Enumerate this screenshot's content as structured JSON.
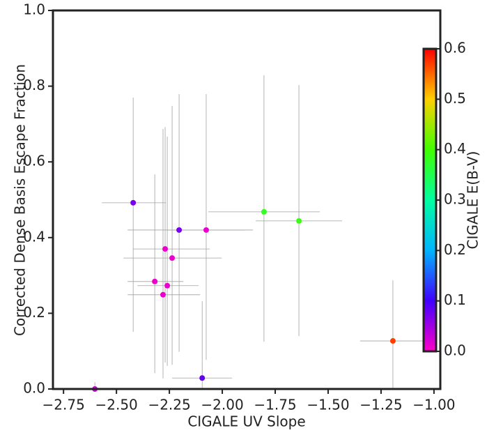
{
  "chart_data": {
    "type": "scatter",
    "x_label": "CIGALE UV Slope",
    "y_label": "Corrected Dense Basis Escape Fraction",
    "x": [
      -2.602,
      -2.421,
      -2.204,
      -2.076,
      -1.803,
      -1.638,
      -2.27,
      -2.237,
      -2.319,
      -2.26,
      -2.28,
      -2.095,
      -1.194
    ],
    "y": [
      0,
      0.492,
      0.42,
      0.42,
      0.468,
      0.444,
      0.37,
      0.346,
      0.284,
      0.273,
      0.249,
      0.029,
      0.127
    ],
    "x_low": [
      -2.602,
      -2.569,
      -2.447,
      -2.257,
      -2.066,
      -1.842,
      -2.421,
      -2.467,
      -2.447,
      -2.401,
      -2.447,
      -2.237,
      -1.349
    ],
    "x_high": [
      -2.602,
      -2.266,
      -1.855,
      -1.895,
      -1.539,
      -1.434,
      -2.059,
      -2.003,
      -2.184,
      -2.112,
      -2.105,
      -1.954,
      -1.039
    ],
    "y_low": [
      0,
      0.151,
      0.098,
      0.077,
      0.125,
      0.14,
      0.07,
      0.064,
      0.042,
      0.061,
      0.028,
      0,
      0
    ],
    "y_high": [
      0.018,
      0.77,
      0.779,
      0.779,
      0.829,
      0.803,
      0.692,
      0.748,
      0.567,
      0.667,
      0.687,
      0.232,
      0.287
    ],
    "color_values": [
      0.03,
      0.07,
      0.07,
      0.01,
      0.38,
      0.39,
      0.01,
      0.01,
      0.01,
      0.01,
      0.01,
      0.08,
      0.57
    ],
    "errorbar_color": "#a0a0a0",
    "xlim": [
      -2.8,
      -0.97
    ],
    "xticks": [
      {
        "value": -2.75,
        "label": "−2.75"
      },
      {
        "value": -2.5,
        "label": "−2.50"
      },
      {
        "value": -2.25,
        "label": "−2.25"
      },
      {
        "value": -2.0,
        "label": "−2.00"
      },
      {
        "value": -1.75,
        "label": "−1.75"
      },
      {
        "value": -1.5,
        "label": "−1.50"
      },
      {
        "value": -1.25,
        "label": "−1.25"
      },
      {
        "value": -1.0,
        "label": "−1.00"
      }
    ],
    "ylim": [
      0,
      1
    ],
    "yticks": [
      {
        "value": 0,
        "label": "0.0"
      },
      0.2,
      0.4,
      0.6,
      0.8,
      {
        "value": 1,
        "label": "1.0"
      }
    ],
    "colorbar": {
      "label": "CIGALE E(B-V)",
      "clim": [
        0,
        0.6
      ],
      "ticks": [
        {
          "value": 0,
          "label": "0.0"
        },
        0.1,
        0.2,
        0.3,
        0.4,
        0.5,
        0.6
      ],
      "colors": [
        "#ff00c8",
        "#4000ff",
        "#00b4ff",
        "#00ffa0",
        "#40ff00",
        "#ffd000",
        "#ff0000"
      ]
    }
  }
}
